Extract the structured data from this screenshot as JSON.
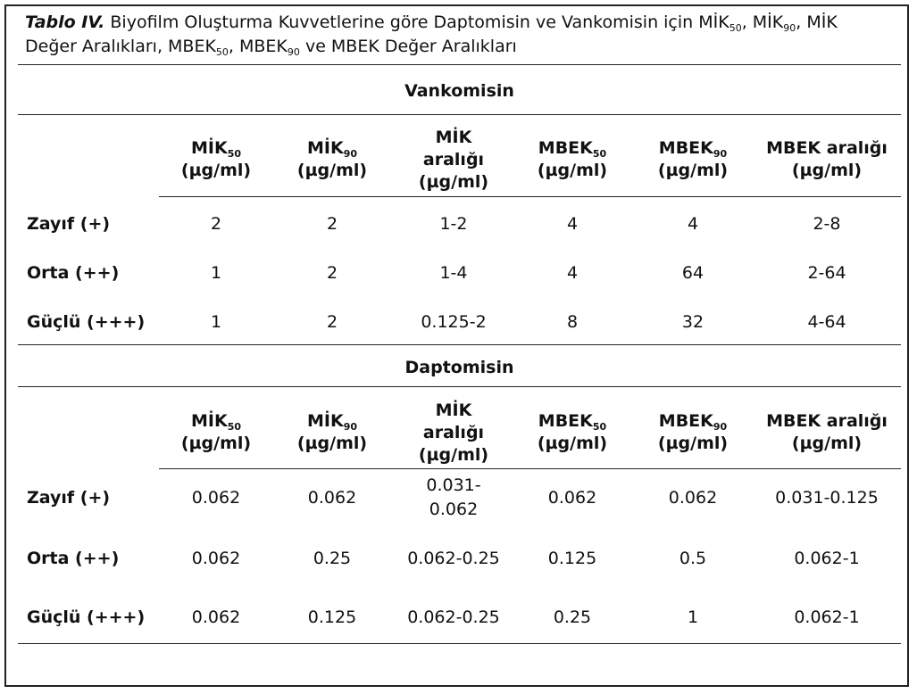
{
  "caption": {
    "label": "Tablo IV.",
    "line1": "Biyofilm Oluşturma Kuvvetlerine göre Daptomisin ve Vankomisin için MİK",
    "sub1": "50",
    "sep1": ", MİK",
    "sub2": "90",
    "sep2": ", MİK",
    "line2": "Değer Aralıkları, MBEK",
    "sub3": "50",
    "sep3": ", MBEK",
    "sub4": "90",
    "tail": " ve MBEK Değer Aralıkları"
  },
  "headers": [
    {
      "main": "MİK",
      "sub": "50",
      "line2": "(µg/ml)",
      "line3": ""
    },
    {
      "main": "MİK",
      "sub": "90",
      "line2": "(µg/ml)",
      "line3": ""
    },
    {
      "main": "MİK",
      "sub": "",
      "line2": "aralığı",
      "line3": "(µg/ml)"
    },
    {
      "main": "MBEK",
      "sub": "50",
      "line2": "(µg/ml)",
      "line3": ""
    },
    {
      "main": "MBEK",
      "sub": "90",
      "line2": "(µg/ml)",
      "line3": ""
    },
    {
      "main": "MBEK aralığı",
      "sub": "",
      "line2": "(µg/ml)",
      "line3": ""
    }
  ],
  "sections": [
    {
      "title": "Vankomisin",
      "rows": [
        {
          "label": "Zayıf (+)",
          "values": [
            "2",
            "2",
            "1-2",
            "4",
            "4",
            "2-8"
          ]
        },
        {
          "label": "Orta (++)",
          "values": [
            "1",
            "2",
            "1-4",
            "4",
            "64",
            "2-64"
          ]
        },
        {
          "label": "Güçlü (+++)",
          "values": [
            "1",
            "2",
            "0.125-2",
            "8",
            "32",
            "4-64"
          ]
        }
      ]
    },
    {
      "title": "Daptomisin",
      "rows": [
        {
          "label": "Zayıf (+)",
          "values": [
            "0.062",
            "0.062",
            "0.031-\n0.062",
            "0.062",
            "0.062",
            "0.031-0.125"
          ]
        },
        {
          "label": "Orta (++)",
          "values": [
            "0.062",
            "0.25",
            "0.062-0.25",
            "0.125",
            "0.5",
            "0.062-1"
          ]
        },
        {
          "label": "Güçlü (+++)",
          "values": [
            "0.062",
            "0.125",
            "0.062-0.25",
            "0.25",
            "1",
            "0.062-1"
          ]
        }
      ]
    }
  ]
}
